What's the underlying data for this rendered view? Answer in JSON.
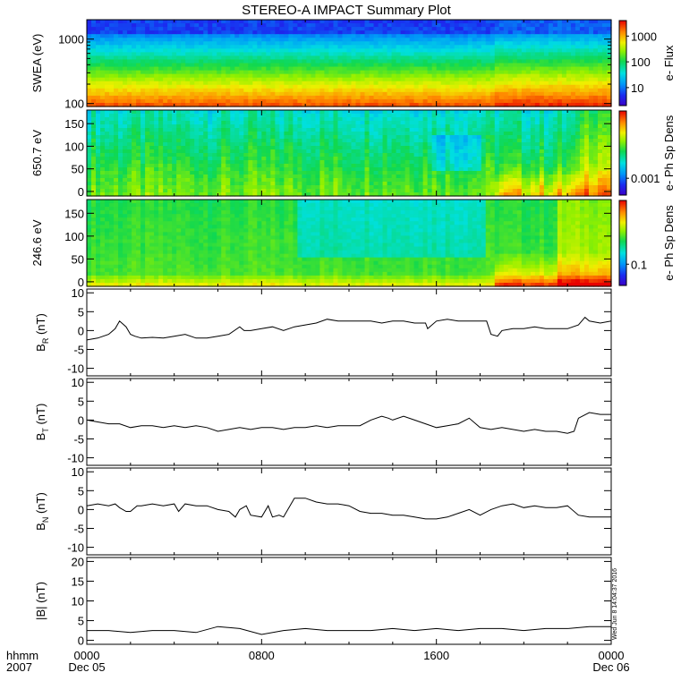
{
  "chart_data": {
    "type": "line",
    "title": "STEREO-A IMPACT Summary Plot",
    "x_axis": {
      "label_line1": "hhmm",
      "label_line2": "2007",
      "range_hours": [
        0,
        24
      ],
      "ticks": [
        {
          "hour": 0,
          "label": "0000",
          "sub": "Dec 05"
        },
        {
          "hour": 8,
          "label": "0800",
          "sub": ""
        },
        {
          "hour": 16,
          "label": "1600",
          "sub": ""
        },
        {
          "hour": 24,
          "label": "0000",
          "sub": "Dec 06"
        }
      ]
    },
    "spectrograms": [
      {
        "id": "swea",
        "ylabel": "SWEA (eV)",
        "yscale": "log",
        "yrange": [
          90,
          2000
        ],
        "yticks": [
          {
            "v": 100,
            "label": "100"
          },
          {
            "v": 1000,
            "label": "1000"
          }
        ],
        "colorbar_label": "e- Flux",
        "colorbar_scale": "log",
        "colorbar_range": [
          2,
          4000
        ],
        "colorbar_ticks": [
          {
            "v": 10,
            "label": "10"
          },
          {
            "v": 100,
            "label": "100"
          },
          {
            "v": 1000,
            "label": "1000"
          }
        ]
      },
      {
        "id": "pad650",
        "ylabel": "650.7 eV",
        "yscale": "linear",
        "yrange": [
          -10,
          180
        ],
        "yticks": [
          {
            "v": 0,
            "label": "0"
          },
          {
            "v": 50,
            "label": "50"
          },
          {
            "v": 100,
            "label": "100"
          },
          {
            "v": 150,
            "label": "150"
          }
        ],
        "colorbar_label": "e- Ph Sp Dens",
        "colorbar_scale": "log",
        "colorbar_ticks": [
          {
            "pos": 0.2,
            "label": "0.001"
          }
        ]
      },
      {
        "id": "pad246",
        "ylabel": "246.6 eV",
        "yscale": "linear",
        "yrange": [
          -10,
          180
        ],
        "yticks": [
          {
            "v": 0,
            "label": "0"
          },
          {
            "v": 50,
            "label": "50"
          },
          {
            "v": 100,
            "label": "100"
          },
          {
            "v": 150,
            "label": "150"
          }
        ],
        "colorbar_label": "e- Ph Sp Dens",
        "colorbar_scale": "log",
        "colorbar_ticks": [
          {
            "pos": 0.25,
            "label": "0.1"
          }
        ]
      }
    ],
    "line_panels": [
      {
        "id": "br",
        "ylabel_main": "B",
        "ylabel_sub": "R",
        "ylabel_unit": " (nT)",
        "yrange": [
          -12,
          11
        ],
        "yticks": [
          -10,
          -5,
          0,
          5,
          10
        ],
        "series": [
          {
            "x": [
              0.0,
              0.5,
              1.0,
              1.3,
              1.5,
              1.8,
              2.0,
              2.2,
              2.5,
              3.0,
              3.5,
              4.0,
              4.5,
              5.0,
              5.5,
              6.0,
              6.5,
              7.0,
              7.2,
              7.5,
              8.0,
              8.5,
              9.0,
              9.5,
              10.0,
              10.5,
              11.0,
              11.5,
              12.0,
              12.5,
              13.0,
              13.5,
              14.0,
              14.5,
              15.0,
              15.5,
              15.6,
              16.0,
              16.5,
              17.0,
              17.5,
              18.0,
              18.3,
              18.5,
              18.8,
              19.0,
              19.5,
              20.0,
              20.5,
              21.0,
              21.5,
              22.0,
              22.5,
              22.8,
              23.0,
              23.5,
              24.0
            ],
            "y": [
              -2.5,
              -2.0,
              -1.0,
              0.5,
              2.5,
              1.0,
              -1.0,
              -1.5,
              -2.0,
              -1.8,
              -2.0,
              -1.5,
              -1.0,
              -2.0,
              -2.0,
              -1.5,
              -1.0,
              1.0,
              0.0,
              0.0,
              0.5,
              1.0,
              0.0,
              1.0,
              1.5,
              2.0,
              3.0,
              2.5,
              2.5,
              2.5,
              2.5,
              2.0,
              2.5,
              2.5,
              2.0,
              2.0,
              0.5,
              2.5,
              3.0,
              2.5,
              2.5,
              2.5,
              2.5,
              -1.0,
              -1.5,
              0.0,
              0.5,
              0.5,
              1.0,
              0.5,
              0.5,
              0.5,
              1.5,
              3.5,
              2.5,
              2.0,
              2.5
            ]
          }
        ]
      },
      {
        "id": "bt",
        "ylabel_main": "B",
        "ylabel_sub": "T",
        "ylabel_unit": " (nT)",
        "yrange": [
          -12,
          11
        ],
        "yticks": [
          -10,
          -5,
          0,
          5,
          10
        ],
        "series": [
          {
            "x": [
              0.0,
              0.5,
              1.0,
              1.5,
              2.0,
              2.5,
              3.0,
              3.5,
              4.0,
              4.5,
              5.0,
              5.5,
              6.0,
              6.5,
              7.0,
              7.5,
              8.0,
              8.5,
              9.0,
              9.5,
              10.0,
              10.5,
              11.0,
              11.5,
              12.0,
              12.5,
              13.0,
              13.5,
              13.8,
              14.0,
              14.5,
              15.0,
              15.5,
              16.0,
              16.5,
              17.0,
              17.5,
              18.0,
              18.5,
              19.0,
              19.5,
              20.0,
              20.5,
              21.0,
              21.5,
              22.0,
              22.3,
              22.5,
              23.0,
              23.5,
              24.0
            ],
            "y": [
              0.0,
              -0.5,
              -1.0,
              -1.0,
              -2.0,
              -1.5,
              -1.5,
              -2.0,
              -1.5,
              -2.0,
              -1.5,
              -2.0,
              -3.0,
              -2.5,
              -2.0,
              -2.5,
              -2.0,
              -2.0,
              -2.5,
              -2.0,
              -2.0,
              -1.5,
              -2.0,
              -1.5,
              -1.5,
              -1.5,
              0.0,
              1.0,
              0.5,
              0.0,
              1.0,
              0.0,
              -1.0,
              -2.0,
              -1.5,
              -1.0,
              0.5,
              -2.0,
              -2.5,
              -2.0,
              -2.5,
              -3.0,
              -2.5,
              -3.0,
              -3.0,
              -3.5,
              -3.0,
              0.5,
              2.0,
              1.5,
              1.5
            ]
          }
        ]
      },
      {
        "id": "bn",
        "ylabel_main": "B",
        "ylabel_sub": "N",
        "ylabel_unit": " (nT)",
        "yrange": [
          -12,
          11
        ],
        "yticks": [
          -10,
          -5,
          0,
          5,
          10
        ],
        "series": [
          {
            "x": [
              0.0,
              0.5,
              1.0,
              1.3,
              1.5,
              1.8,
              2.0,
              2.3,
              2.5,
              3.0,
              3.5,
              4.0,
              4.2,
              4.5,
              5.0,
              5.5,
              6.0,
              6.5,
              6.8,
              7.0,
              7.3,
              7.5,
              8.0,
              8.3,
              8.5,
              8.8,
              9.0,
              9.5,
              10.0,
              10.5,
              11.0,
              11.5,
              12.0,
              12.5,
              13.0,
              13.5,
              14.0,
              14.5,
              15.0,
              15.5,
              16.0,
              16.5,
              17.0,
              17.5,
              18.0,
              18.5,
              19.0,
              19.5,
              20.0,
              20.5,
              21.0,
              21.5,
              22.0,
              22.5,
              23.0,
              23.5,
              24.0
            ],
            "y": [
              1.0,
              1.5,
              1.0,
              1.5,
              0.5,
              -0.5,
              -0.5,
              1.0,
              1.0,
              1.5,
              1.0,
              1.5,
              -0.5,
              1.5,
              1.0,
              1.0,
              0.0,
              -0.5,
              -2.0,
              0.0,
              1.0,
              -1.5,
              -2.0,
              1.0,
              -2.0,
              -1.5,
              -2.0,
              3.0,
              3.0,
              2.0,
              1.5,
              1.5,
              1.0,
              -0.5,
              -1.0,
              -1.0,
              -1.5,
              -1.5,
              -2.0,
              -2.5,
              -2.5,
              -2.0,
              -1.0,
              0.0,
              -1.5,
              0.0,
              1.0,
              1.5,
              0.5,
              1.0,
              0.5,
              0.5,
              1.0,
              -1.5,
              -2.0,
              -2.0,
              -2.0
            ]
          }
        ]
      },
      {
        "id": "bmag",
        "ylabel_main": "|B| (nT)",
        "ylabel_sub": "",
        "ylabel_unit": "",
        "yrange": [
          -1,
          21
        ],
        "yticks": [
          0,
          5,
          10,
          15,
          20
        ],
        "series": [
          {
            "x": [
              0,
              1,
              2,
              3,
              4,
              5,
              6,
              7,
              8,
              9,
              10,
              11,
              12,
              13,
              14,
              15,
              16,
              17,
              18,
              19,
              20,
              21,
              22,
              23,
              24
            ],
            "y": [
              2.5,
              2.5,
              2.0,
              2.5,
              2.5,
              2.0,
              3.5,
              3.0,
              1.5,
              2.5,
              3.0,
              2.5,
              2.5,
              2.5,
              3.0,
              2.5,
              3.0,
              2.5,
              3.0,
              3.0,
              2.5,
              3.0,
              3.0,
              3.5,
              3.5
            ]
          }
        ]
      }
    ],
    "timestamp": "Wed Jun 8 14:04:37 2016"
  }
}
